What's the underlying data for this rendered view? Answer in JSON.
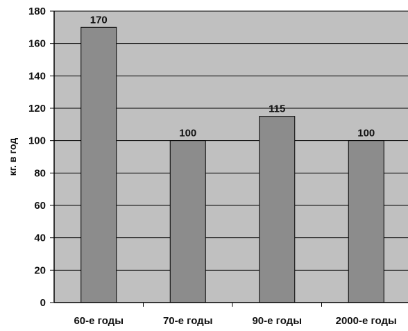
{
  "chart_data": {
    "type": "bar",
    "categories": [
      "60-е годы",
      "70-е годы",
      "90-е годы",
      "2000-е годы"
    ],
    "values": [
      170,
      100,
      115,
      100
    ],
    "data_labels": [
      "170",
      "100",
      "115",
      "100"
    ],
    "title": "",
    "xlabel": "",
    "ylabel": "кг. в год",
    "ylim": [
      0,
      180
    ],
    "yticks": [
      0,
      20,
      40,
      60,
      80,
      100,
      120,
      140,
      160,
      180
    ],
    "grid": true,
    "legend": "none"
  },
  "colors": {
    "plot_background": "#c0c0c0",
    "bar_fill": "#8c8c8c",
    "bar_stroke": "#000000",
    "grid": "#000000",
    "text": "#111111"
  }
}
